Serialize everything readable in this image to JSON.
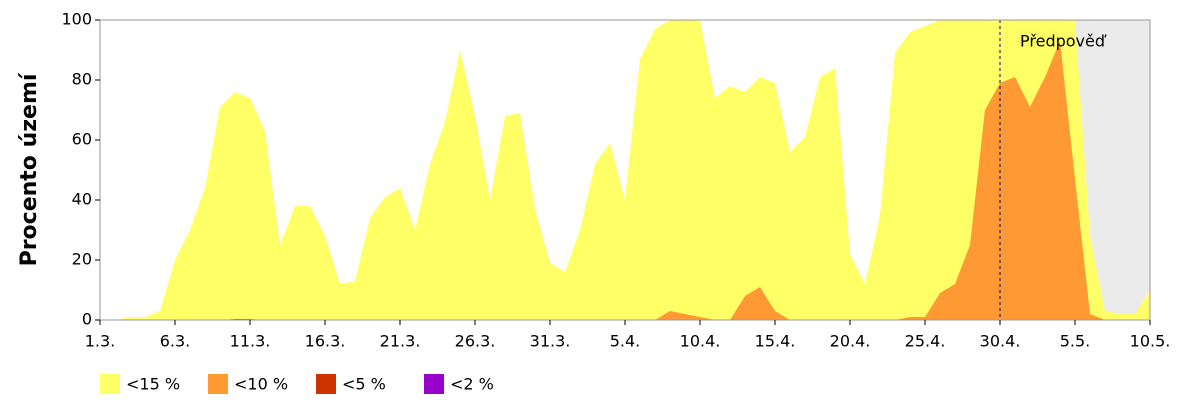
{
  "chart_data": {
    "type": "area",
    "y_label": "Procento území",
    "categories": [
      "1.3.",
      null,
      null,
      null,
      null,
      "6.3.",
      null,
      null,
      null,
      null,
      "11.3.",
      null,
      null,
      null,
      null,
      "16.3.",
      null,
      null,
      null,
      null,
      "21.3.",
      null,
      null,
      null,
      null,
      "26.3.",
      null,
      null,
      null,
      null,
      "31.3.",
      null,
      null,
      null,
      null,
      "5.4.",
      null,
      null,
      null,
      null,
      "10.4.",
      null,
      null,
      null,
      null,
      "15.4.",
      null,
      null,
      null,
      null,
      "20.4.",
      null,
      null,
      null,
      null,
      "25.4.",
      null,
      null,
      null,
      null,
      "30.4.",
      null,
      null,
      null,
      null,
      "5.5.",
      null,
      null,
      null,
      null,
      "10.5."
    ],
    "series": [
      {
        "name": "<15 %",
        "color": "#ffff66",
        "values": [
          0,
          0,
          1,
          1,
          3,
          20,
          30,
          44,
          71,
          76,
          74,
          63,
          25,
          38,
          38,
          28,
          12,
          13,
          34,
          41,
          44,
          30,
          52,
          66,
          90,
          68,
          40,
          68,
          69,
          37,
          19,
          16,
          30,
          52,
          59,
          40,
          87,
          97,
          100,
          100,
          100,
          74,
          78,
          76,
          81,
          79,
          56,
          61,
          81,
          84,
          22,
          12,
          35,
          89,
          96,
          98,
          100,
          100,
          100,
          100,
          100,
          100,
          100,
          100,
          100,
          100,
          28,
          3,
          2,
          2,
          10
        ]
      },
      {
        "name": "<10 %",
        "color": "#ff9933",
        "values": [
          0,
          0,
          0,
          0,
          0,
          0,
          0,
          0,
          0,
          0,
          0,
          0,
          0,
          0,
          0,
          0,
          0,
          0,
          0,
          0,
          0,
          0,
          0,
          0,
          0,
          0,
          0,
          0,
          0,
          0,
          0,
          0,
          0,
          0,
          0,
          0,
          0,
          0,
          3,
          2,
          1,
          0,
          0,
          8,
          11,
          3,
          0,
          0,
          0,
          0,
          0,
          0,
          0,
          0,
          1,
          1,
          9,
          12,
          25,
          70,
          79,
          81,
          71,
          81,
          93,
          47,
          2,
          0,
          0,
          0,
          0
        ]
      },
      {
        "name": "<5 %",
        "color": "#cc3300",
        "values": [
          0,
          0,
          0,
          0,
          0,
          0,
          0,
          0,
          0,
          0.3,
          0.3,
          0,
          0,
          0,
          0,
          0,
          0,
          0,
          0,
          0,
          0,
          0,
          0,
          0,
          0,
          0,
          0,
          0,
          0,
          0,
          0,
          0,
          0,
          0,
          0,
          0,
          0,
          0,
          0,
          0,
          0,
          0,
          0,
          0,
          0,
          0,
          0,
          0,
          0,
          0,
          0,
          0,
          0,
          0,
          0,
          0,
          0,
          0,
          0,
          0,
          0,
          0,
          0,
          0,
          0,
          0,
          0,
          0,
          0,
          0,
          0
        ]
      },
      {
        "name": "<2 %",
        "color": "#9900cc",
        "values": [
          0,
          0,
          0,
          0,
          0,
          0,
          0,
          0,
          0,
          0,
          0,
          0,
          0,
          0,
          0,
          0,
          0,
          0,
          0,
          0,
          0,
          0,
          0,
          0,
          0,
          0,
          0,
          0,
          0,
          0,
          0,
          0,
          0,
          0,
          0,
          0,
          0,
          0,
          0,
          0,
          0,
          0,
          0,
          0,
          0,
          0,
          0,
          0,
          0,
          0,
          0,
          0,
          0,
          0,
          0,
          0,
          0,
          0,
          0,
          0,
          0,
          0,
          0,
          0,
          0,
          0,
          0,
          0,
          0,
          0,
          0
        ]
      }
    ],
    "annotations": [
      {
        "text": "Předpověď",
        "x": "30.4."
      }
    ],
    "ylim": [
      0,
      100
    ],
    "yticks": [
      0,
      20,
      40,
      60,
      80,
      100
    ],
    "grid": false,
    "legend": "bottom-left"
  }
}
